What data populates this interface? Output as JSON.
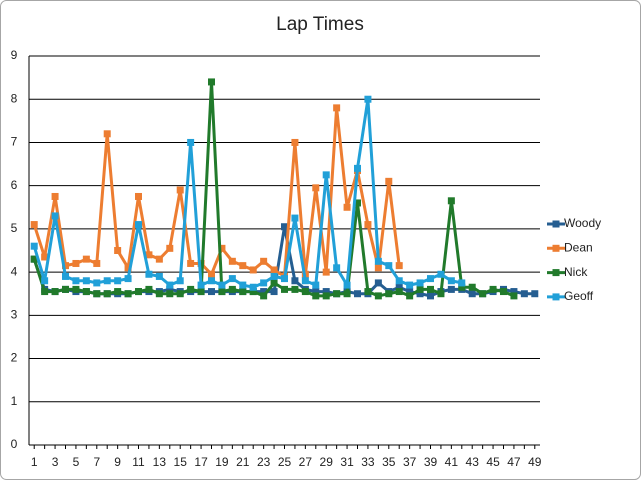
{
  "chart_data": {
    "type": "line",
    "title": "Lap Times",
    "categories": [
      1,
      null,
      3,
      null,
      5,
      null,
      7,
      null,
      9,
      null,
      11,
      null,
      13,
      null,
      15,
      null,
      17,
      null,
      19,
      null,
      21,
      null,
      23,
      null,
      25,
      null,
      27,
      null,
      29,
      null,
      31,
      null,
      33,
      null,
      35,
      null,
      37,
      null,
      39,
      null,
      41,
      null,
      43,
      null,
      45,
      null,
      47,
      null,
      49
    ],
    "ylim": [
      0,
      9
    ],
    "yticks": [
      0,
      1,
      2,
      3,
      4,
      5,
      6,
      7,
      8,
      9
    ],
    "grid": true,
    "legend": "right",
    "series": [
      {
        "name": "Woody",
        "color": "#255e91",
        "values": [
          4.3,
          3.6,
          3.55,
          3.6,
          3.55,
          3.55,
          3.5,
          3.5,
          3.5,
          3.5,
          3.55,
          3.55,
          3.55,
          3.6,
          3.55,
          3.55,
          3.55,
          3.55,
          3.55,
          3.55,
          3.55,
          3.55,
          3.55,
          3.55,
          5.05,
          3.8,
          3.6,
          3.55,
          3.55,
          3.5,
          3.55,
          3.5,
          3.5,
          3.75,
          3.55,
          3.65,
          3.55,
          3.5,
          3.45,
          3.55,
          3.6,
          3.6,
          3.5,
          3.5,
          3.55,
          3.6,
          3.55,
          3.5,
          3.5
        ]
      },
      {
        "name": "Dean",
        "color": "#ed7d31",
        "values": [
          5.1,
          4.35,
          5.75,
          4.15,
          4.2,
          4.3,
          4.2,
          7.2,
          4.5,
          4.1,
          5.75,
          4.4,
          4.3,
          4.55,
          5.9,
          4.2,
          4.2,
          3.95,
          4.55,
          4.25,
          4.15,
          4.05,
          4.25,
          4.05,
          3.9,
          7.0,
          3.95,
          5.95,
          4.0,
          7.8,
          5.5,
          6.35,
          5.1,
          4.1,
          6.1,
          4.15,
          null,
          null,
          null,
          null,
          null,
          null,
          null,
          null,
          null,
          null,
          null,
          null,
          null
        ]
      },
      {
        "name": "Nick",
        "color": "#217a2b",
        "values": [
          4.3,
          3.55,
          3.55,
          3.6,
          3.6,
          3.55,
          3.5,
          3.5,
          3.55,
          3.5,
          3.55,
          3.6,
          3.5,
          3.5,
          3.5,
          3.6,
          3.55,
          8.4,
          3.55,
          3.6,
          3.55,
          3.55,
          3.45,
          3.75,
          3.6,
          3.6,
          3.55,
          3.45,
          3.45,
          3.5,
          3.5,
          5.6,
          3.55,
          3.45,
          3.5,
          3.55,
          3.45,
          3.6,
          3.6,
          3.5,
          5.65,
          3.65,
          3.65,
          3.5,
          3.6,
          3.55,
          3.45,
          null,
          null
        ]
      },
      {
        "name": "Geoff",
        "color": "#21a0d8",
        "values": [
          4.6,
          3.8,
          5.3,
          3.9,
          3.8,
          3.8,
          3.75,
          3.8,
          3.8,
          3.85,
          5.1,
          3.95,
          3.9,
          3.7,
          3.8,
          7.0,
          3.7,
          3.8,
          3.7,
          3.85,
          3.7,
          3.65,
          3.75,
          3.9,
          3.85,
          5.25,
          3.8,
          3.7,
          6.25,
          4.1,
          3.7,
          6.4,
          8.0,
          4.25,
          4.15,
          3.8,
          3.7,
          3.75,
          3.85,
          3.95,
          3.8,
          3.75,
          null,
          null,
          null,
          null,
          null,
          null,
          null
        ]
      }
    ]
  }
}
